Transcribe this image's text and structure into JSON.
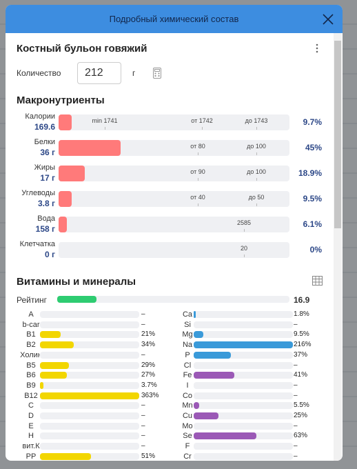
{
  "header": {
    "title": "Подробный химический состав"
  },
  "food": {
    "name": "Костный бульон говяжий"
  },
  "quantity": {
    "label": "Количество",
    "value": "212",
    "unit": "г"
  },
  "macros": {
    "title": "Макронутриенты",
    "color": "#ff7a7a",
    "items": [
      {
        "name": "Калории",
        "amount": "169.6",
        "ticks": [
          "min 1741",
          "от 1742",
          "до 1743"
        ],
        "percent": {
          "value": 9.7,
          "label": "9.7%"
        }
      },
      {
        "name": "Белки",
        "amount": "36 г",
        "ticks": [
          "от 80",
          "до 100"
        ],
        "percent": {
          "value": 45,
          "label": "45%"
        }
      },
      {
        "name": "Жиры",
        "amount": "17 г",
        "ticks": [
          "от 90",
          "до 100"
        ],
        "percent": {
          "value": 18.9,
          "label": "18.9%"
        }
      },
      {
        "name": "Углеводы",
        "amount": "3.8 г",
        "ticks": [
          "от 40",
          "до 50"
        ],
        "percent": {
          "value": 9.5,
          "label": "9.5%"
        }
      },
      {
        "name": "Вода",
        "amount": "158 г",
        "ticks": [
          "2585"
        ],
        "percent": {
          "value": 6.1,
          "label": "6.1%"
        }
      },
      {
        "name": "Клетчатка",
        "amount": "0 г",
        "ticks": [
          "20"
        ],
        "percent": {
          "value": 0,
          "label": "0%"
        }
      }
    ]
  },
  "vitamins": {
    "title": "Витамины и минералы",
    "rating": {
      "label": "Рейтинг",
      "value": 16.9,
      "color": "#2ecc71"
    },
    "left": [
      {
        "name": "A",
        "value": null,
        "label": "–"
      },
      {
        "name": "b-car",
        "value": null,
        "label": "–"
      },
      {
        "name": "B1",
        "value": 21,
        "label": "21%",
        "color": "#f2d600"
      },
      {
        "name": "B2",
        "value": 34,
        "label": "34%",
        "color": "#f2d600"
      },
      {
        "name": "Холин",
        "value": null,
        "label": "–"
      },
      {
        "name": "B5",
        "value": 29,
        "label": "29%",
        "color": "#f2d600"
      },
      {
        "name": "B6",
        "value": 27,
        "label": "27%",
        "color": "#f2d600"
      },
      {
        "name": "B9",
        "value": 3.7,
        "label": "3.7%",
        "color": "#f2d600"
      },
      {
        "name": "B12",
        "value": 363,
        "label": "363%",
        "color": "#f2d600"
      },
      {
        "name": "C",
        "value": null,
        "label": "–"
      },
      {
        "name": "D",
        "value": null,
        "label": "–"
      },
      {
        "name": "E",
        "value": null,
        "label": "–"
      },
      {
        "name": "H",
        "value": null,
        "label": "–"
      },
      {
        "name": "вит.К",
        "value": null,
        "label": "–"
      },
      {
        "name": "PP",
        "value": 51,
        "label": "51%",
        "color": "#f2d600"
      }
    ],
    "right": [
      {
        "name": "Ca",
        "value": 1.8,
        "label": "1.8%",
        "color": "#3a9ad9"
      },
      {
        "name": "Si",
        "value": null,
        "label": "–"
      },
      {
        "name": "Mg",
        "value": 9.5,
        "label": "9.5%",
        "color": "#3a9ad9"
      },
      {
        "name": "Na",
        "value": 216,
        "label": "216%",
        "color": "#3a9ad9"
      },
      {
        "name": "P",
        "value": 37,
        "label": "37%",
        "color": "#3a9ad9"
      },
      {
        "name": "Cl",
        "value": null,
        "label": "–"
      },
      {
        "name": "Fe",
        "value": 41,
        "label": "41%",
        "color": "#9b59b6"
      },
      {
        "name": "I",
        "value": null,
        "label": "–"
      },
      {
        "name": "Co",
        "value": null,
        "label": "–"
      },
      {
        "name": "Mn",
        "value": 5.5,
        "label": "5.5%",
        "color": "#9b59b6"
      },
      {
        "name": "Cu",
        "value": 25,
        "label": "25%",
        "color": "#9b59b6"
      },
      {
        "name": "Mo",
        "value": null,
        "label": "–"
      },
      {
        "name": "Se",
        "value": 63,
        "label": "63%",
        "color": "#9b59b6"
      },
      {
        "name": "F",
        "value": null,
        "label": "–"
      },
      {
        "name": "Cr",
        "value": null,
        "label": "–"
      }
    ]
  }
}
